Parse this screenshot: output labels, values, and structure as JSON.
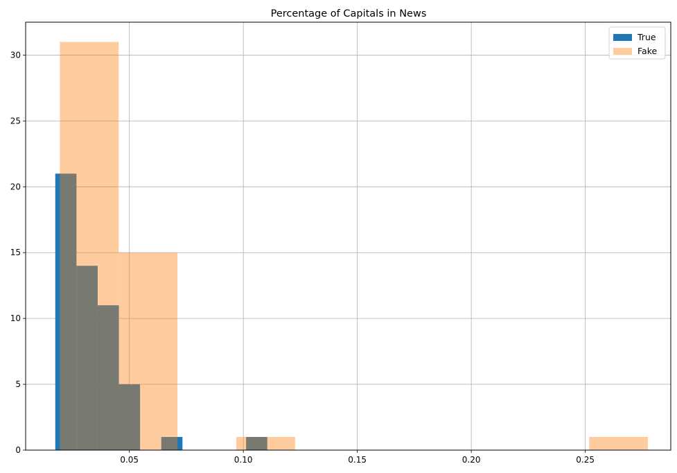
{
  "chart_data": {
    "type": "histogram",
    "title": "Percentage of Capitals in News",
    "xlabel": "",
    "ylabel": "",
    "xlim": [
      0.0045,
      0.2875
    ],
    "ylim": [
      0,
      32.5
    ],
    "xticks": [
      0.05,
      0.1,
      0.15,
      0.2,
      0.25
    ],
    "xtick_labels": [
      "0.05",
      "0.10",
      "0.15",
      "0.20",
      "0.25"
    ],
    "yticks": [
      0,
      5,
      10,
      15,
      20,
      25,
      30
    ],
    "ytick_labels": [
      "0",
      "5",
      "10",
      "15",
      "20",
      "25",
      "30"
    ],
    "grid": true,
    "legend_position": "top-right",
    "series": [
      {
        "name": "True",
        "color": "#1f77b4",
        "alpha": 1.0,
        "bin_edges": [
          0.0175,
          0.0268,
          0.0361,
          0.0454,
          0.0547,
          0.064,
          0.0733,
          0.0826,
          0.0919,
          0.1012,
          0.1105
        ],
        "counts": [
          21,
          14,
          11,
          5,
          0,
          1,
          0,
          0,
          0,
          1
        ]
      },
      {
        "name": "Fake",
        "color": "#ff7f0e",
        "alpha": 0.4,
        "bin_edges": [
          0.0195,
          0.0453,
          0.0711,
          0.0969,
          0.1227,
          0.1485,
          0.1743,
          0.2001,
          0.2259,
          0.2517,
          0.2775
        ],
        "counts": [
          31,
          15,
          0,
          1,
          0,
          0,
          0,
          0,
          0,
          1
        ]
      }
    ]
  }
}
